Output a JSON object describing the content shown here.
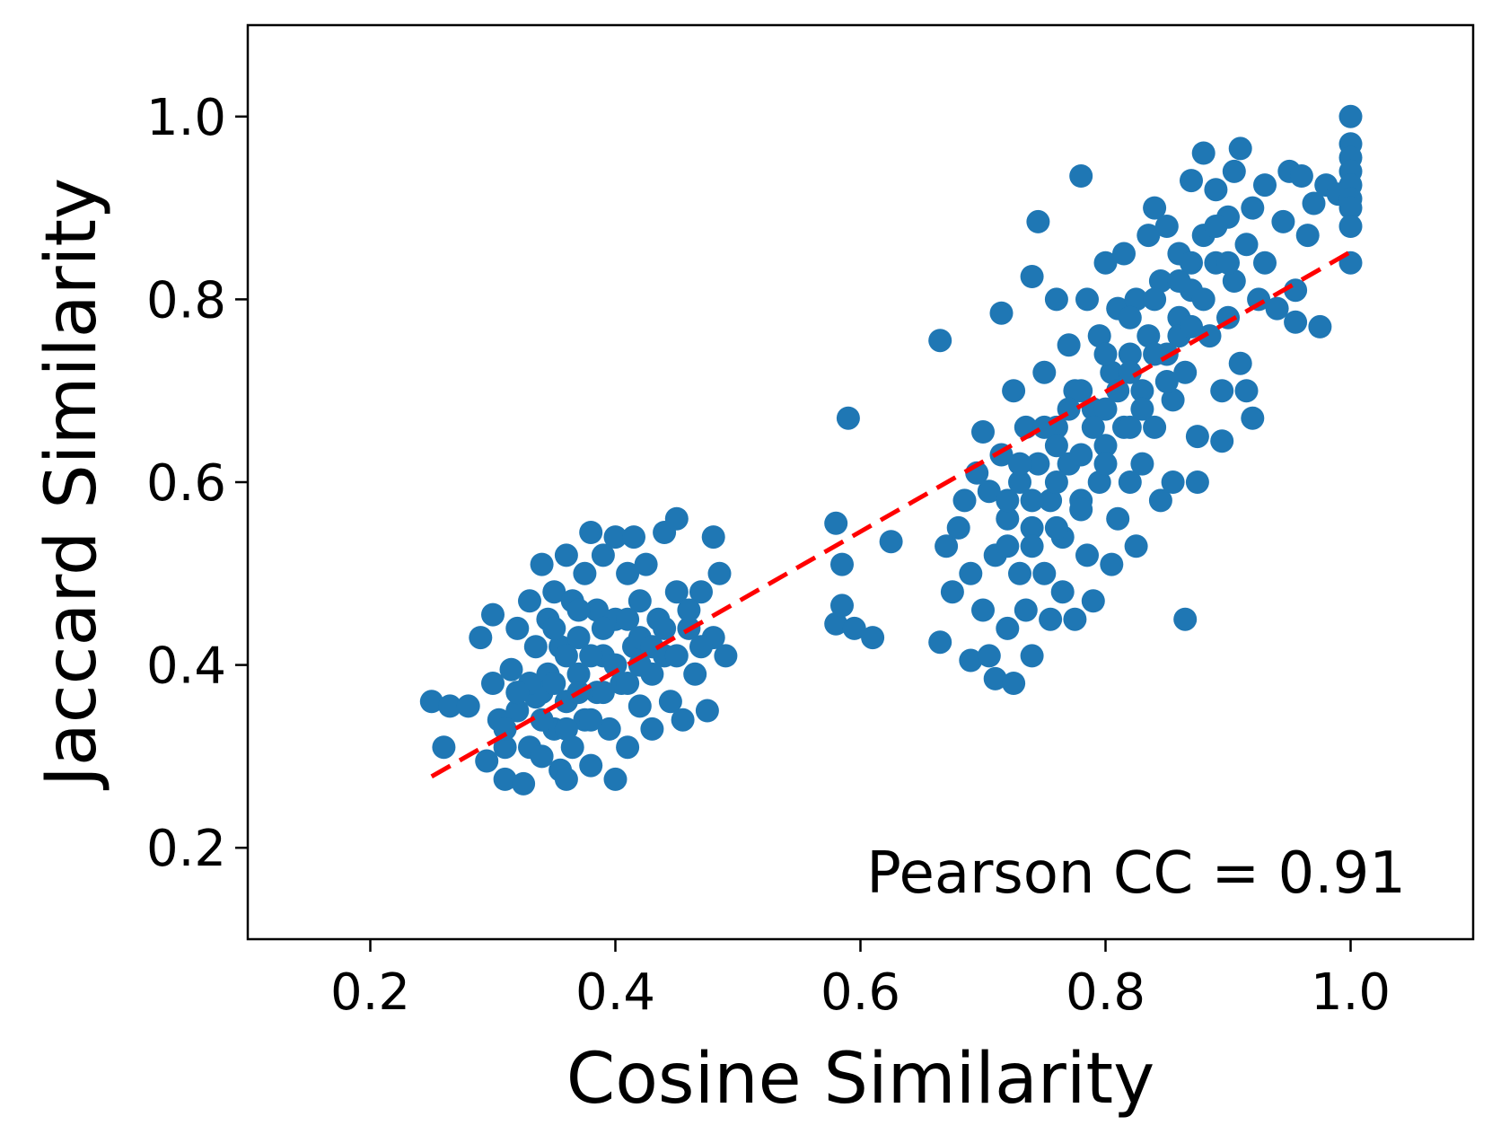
{
  "chart_data": {
    "type": "scatter",
    "title": "",
    "xlabel": "Cosine Similarity",
    "ylabel": "Jaccard Similarity",
    "xlim": [
      0.1,
      1.1
    ],
    "ylim": [
      0.1,
      1.1
    ],
    "xticks": [
      0.2,
      0.4,
      0.6,
      0.8,
      1.0
    ],
    "xtick_labels": [
      "0.2",
      "0.4",
      "0.6",
      "0.8",
      "1.0"
    ],
    "yticks": [
      0.2,
      0.4,
      0.6,
      0.8,
      1.0
    ],
    "ytick_labels": [
      "0.2",
      "0.4",
      "0.6",
      "0.8",
      "1.0"
    ],
    "grid": false,
    "annotation": "Pearson CC = 0.91",
    "colors": {
      "points": "#1f77b4",
      "fit_line": "#ff0000",
      "axes": "#000000"
    },
    "fit_line": {
      "style": "dashed",
      "x": [
        0.25,
        1.0
      ],
      "y": [
        0.278,
        0.852
      ]
    },
    "series": [
      {
        "name": "scatter-points",
        "points": [
          [
            0.25,
            0.36
          ],
          [
            0.26,
            0.31
          ],
          [
            0.265,
            0.355
          ],
          [
            0.28,
            0.355
          ],
          [
            0.29,
            0.43
          ],
          [
            0.295,
            0.295
          ],
          [
            0.3,
            0.455
          ],
          [
            0.3,
            0.38
          ],
          [
            0.305,
            0.34
          ],
          [
            0.31,
            0.31
          ],
          [
            0.31,
            0.275
          ],
          [
            0.315,
            0.395
          ],
          [
            0.32,
            0.44
          ],
          [
            0.32,
            0.35
          ],
          [
            0.325,
            0.27
          ],
          [
            0.33,
            0.47
          ],
          [
            0.33,
            0.31
          ],
          [
            0.335,
            0.42
          ],
          [
            0.335,
            0.365
          ],
          [
            0.34,
            0.51
          ],
          [
            0.34,
            0.3
          ],
          [
            0.345,
            0.45
          ],
          [
            0.345,
            0.39
          ],
          [
            0.35,
            0.48
          ],
          [
            0.35,
            0.33
          ],
          [
            0.355,
            0.285
          ],
          [
            0.355,
            0.42
          ],
          [
            0.36,
            0.52
          ],
          [
            0.36,
            0.36
          ],
          [
            0.36,
            0.275
          ],
          [
            0.365,
            0.47
          ],
          [
            0.365,
            0.31
          ],
          [
            0.37,
            0.43
          ],
          [
            0.37,
            0.39
          ],
          [
            0.375,
            0.5
          ],
          [
            0.375,
            0.34
          ],
          [
            0.38,
            0.545
          ],
          [
            0.38,
            0.29
          ],
          [
            0.385,
            0.46
          ],
          [
            0.385,
            0.37
          ],
          [
            0.39,
            0.52
          ],
          [
            0.39,
            0.41
          ],
          [
            0.395,
            0.33
          ],
          [
            0.4,
            0.54
          ],
          [
            0.4,
            0.275
          ],
          [
            0.4,
            0.45
          ],
          [
            0.405,
            0.38
          ],
          [
            0.41,
            0.5
          ],
          [
            0.41,
            0.31
          ],
          [
            0.415,
            0.54
          ],
          [
            0.415,
            0.42
          ],
          [
            0.42,
            0.355
          ],
          [
            0.42,
            0.47
          ],
          [
            0.425,
            0.51
          ],
          [
            0.43,
            0.39
          ],
          [
            0.43,
            0.33
          ],
          [
            0.435,
            0.45
          ],
          [
            0.44,
            0.545
          ],
          [
            0.44,
            0.41
          ],
          [
            0.445,
            0.36
          ],
          [
            0.45,
            0.56
          ],
          [
            0.45,
            0.48
          ],
          [
            0.455,
            0.34
          ],
          [
            0.46,
            0.44
          ],
          [
            0.465,
            0.39
          ],
          [
            0.47,
            0.48
          ],
          [
            0.475,
            0.35
          ],
          [
            0.48,
            0.54
          ],
          [
            0.48,
            0.43
          ],
          [
            0.485,
            0.5
          ],
          [
            0.49,
            0.41
          ],
          [
            0.35,
            0.44
          ],
          [
            0.37,
            0.46
          ],
          [
            0.39,
            0.44
          ],
          [
            0.41,
            0.45
          ],
          [
            0.38,
            0.41
          ],
          [
            0.4,
            0.4
          ],
          [
            0.42,
            0.43
          ],
          [
            0.36,
            0.41
          ],
          [
            0.34,
            0.37
          ],
          [
            0.33,
            0.38
          ],
          [
            0.32,
            0.37
          ],
          [
            0.31,
            0.33
          ],
          [
            0.35,
            0.38
          ],
          [
            0.37,
            0.37
          ],
          [
            0.39,
            0.37
          ],
          [
            0.41,
            0.38
          ],
          [
            0.43,
            0.42
          ],
          [
            0.44,
            0.44
          ],
          [
            0.38,
            0.34
          ],
          [
            0.36,
            0.33
          ],
          [
            0.34,
            0.34
          ],
          [
            0.42,
            0.4
          ],
          [
            0.45,
            0.41
          ],
          [
            0.46,
            0.46
          ],
          [
            0.47,
            0.42
          ],
          [
            0.58,
            0.555
          ],
          [
            0.585,
            0.51
          ],
          [
            0.59,
            0.67
          ],
          [
            0.58,
            0.445
          ],
          [
            0.585,
            0.465
          ],
          [
            0.595,
            0.44
          ],
          [
            0.61,
            0.43
          ],
          [
            0.625,
            0.535
          ],
          [
            0.665,
            0.755
          ],
          [
            0.665,
            0.425
          ],
          [
            0.67,
            0.53
          ],
          [
            0.675,
            0.48
          ],
          [
            0.68,
            0.55
          ],
          [
            0.685,
            0.58
          ],
          [
            0.69,
            0.5
          ],
          [
            0.69,
            0.405
          ],
          [
            0.695,
            0.61
          ],
          [
            0.7,
            0.46
          ],
          [
            0.7,
            0.655
          ],
          [
            0.705,
            0.59
          ],
          [
            0.705,
            0.41
          ],
          [
            0.71,
            0.52
          ],
          [
            0.71,
            0.385
          ],
          [
            0.715,
            0.63
          ],
          [
            0.715,
            0.785
          ],
          [
            0.72,
            0.56
          ],
          [
            0.72,
            0.44
          ],
          [
            0.725,
            0.7
          ],
          [
            0.725,
            0.38
          ],
          [
            0.73,
            0.6
          ],
          [
            0.73,
            0.5
          ],
          [
            0.735,
            0.66
          ],
          [
            0.735,
            0.46
          ],
          [
            0.74,
            0.825
          ],
          [
            0.74,
            0.55
          ],
          [
            0.74,
            0.41
          ],
          [
            0.745,
            0.62
          ],
          [
            0.745,
            0.885
          ],
          [
            0.75,
            0.72
          ],
          [
            0.75,
            0.5
          ],
          [
            0.755,
            0.58
          ],
          [
            0.755,
            0.45
          ],
          [
            0.76,
            0.8
          ],
          [
            0.76,
            0.66
          ],
          [
            0.765,
            0.54
          ],
          [
            0.765,
            0.48
          ],
          [
            0.77,
            0.75
          ],
          [
            0.77,
            0.62
          ],
          [
            0.775,
            0.7
          ],
          [
            0.775,
            0.45
          ],
          [
            0.78,
            0.935
          ],
          [
            0.78,
            0.58
          ],
          [
            0.785,
            0.8
          ],
          [
            0.785,
            0.52
          ],
          [
            0.79,
            0.68
          ],
          [
            0.79,
            0.47
          ],
          [
            0.795,
            0.76
          ],
          [
            0.795,
            0.6
          ],
          [
            0.8,
            0.84
          ],
          [
            0.8,
            0.64
          ],
          [
            0.805,
            0.51
          ],
          [
            0.805,
            0.72
          ],
          [
            0.81,
            0.79
          ],
          [
            0.81,
            0.56
          ],
          [
            0.815,
            0.85
          ],
          [
            0.815,
            0.66
          ],
          [
            0.82,
            0.74
          ],
          [
            0.82,
            0.6
          ],
          [
            0.825,
            0.53
          ],
          [
            0.825,
            0.8
          ],
          [
            0.83,
            0.7
          ],
          [
            0.83,
            0.62
          ],
          [
            0.835,
            0.87
          ],
          [
            0.835,
            0.76
          ],
          [
            0.84,
            0.9
          ],
          [
            0.84,
            0.66
          ],
          [
            0.845,
            0.82
          ],
          [
            0.845,
            0.58
          ],
          [
            0.85,
            0.74
          ],
          [
            0.85,
            0.88
          ],
          [
            0.855,
            0.69
          ],
          [
            0.855,
            0.6
          ],
          [
            0.86,
            0.85
          ],
          [
            0.86,
            0.78
          ],
          [
            0.865,
            0.72
          ],
          [
            0.865,
            0.45
          ],
          [
            0.87,
            0.93
          ],
          [
            0.87,
            0.81
          ],
          [
            0.875,
            0.65
          ],
          [
            0.875,
            0.6
          ],
          [
            0.88,
            0.96
          ],
          [
            0.88,
            0.87
          ],
          [
            0.885,
            0.76
          ],
          [
            0.89,
            0.84
          ],
          [
            0.89,
            0.92
          ],
          [
            0.895,
            0.7
          ],
          [
            0.895,
            0.645
          ],
          [
            0.9,
            0.89
          ],
          [
            0.9,
            0.78
          ],
          [
            0.905,
            0.94
          ],
          [
            0.905,
            0.82
          ],
          [
            0.91,
            0.965
          ],
          [
            0.91,
            0.73
          ],
          [
            0.915,
            0.86
          ],
          [
            0.915,
            0.7
          ],
          [
            0.92,
            0.9
          ],
          [
            0.92,
            0.67
          ],
          [
            0.925,
            0.8
          ],
          [
            0.93,
            0.925
          ],
          [
            0.93,
            0.84
          ],
          [
            0.94,
            0.79
          ],
          [
            0.945,
            0.885
          ],
          [
            0.95,
            0.94
          ],
          [
            0.955,
            0.81
          ],
          [
            0.955,
            0.775
          ],
          [
            0.96,
            0.935
          ],
          [
            0.965,
            0.87
          ],
          [
            0.97,
            0.905
          ],
          [
            0.975,
            0.77
          ],
          [
            0.98,
            0.925
          ],
          [
            0.99,
            0.915
          ],
          [
            1.0,
            1.0
          ],
          [
            1.0,
            0.97
          ],
          [
            1.0,
            0.955
          ],
          [
            1.0,
            0.94
          ],
          [
            1.0,
            0.925
          ],
          [
            1.0,
            0.91
          ],
          [
            1.0,
            0.9
          ],
          [
            1.0,
            0.88
          ],
          [
            1.0,
            0.84
          ],
          [
            0.76,
            0.64
          ],
          [
            0.78,
            0.7
          ],
          [
            0.8,
            0.68
          ],
          [
            0.82,
            0.66
          ],
          [
            0.78,
            0.63
          ],
          [
            0.76,
            0.6
          ],
          [
            0.74,
            0.58
          ],
          [
            0.72,
            0.58
          ],
          [
            0.8,
            0.74
          ],
          [
            0.82,
            0.78
          ],
          [
            0.84,
            0.74
          ],
          [
            0.86,
            0.76
          ],
          [
            0.88,
            0.8
          ],
          [
            0.9,
            0.84
          ],
          [
            0.86,
            0.82
          ],
          [
            0.84,
            0.8
          ],
          [
            0.82,
            0.72
          ],
          [
            0.8,
            0.62
          ],
          [
            0.78,
            0.57
          ],
          [
            0.76,
            0.55
          ],
          [
            0.74,
            0.53
          ],
          [
            0.72,
            0.53
          ],
          [
            0.83,
            0.68
          ],
          [
            0.81,
            0.7
          ],
          [
            0.79,
            0.66
          ],
          [
            0.77,
            0.68
          ],
          [
            0.75,
            0.66
          ],
          [
            0.73,
            0.62
          ],
          [
            0.87,
            0.84
          ],
          [
            0.89,
            0.88
          ],
          [
            0.85,
            0.71
          ],
          [
            0.87,
            0.77
          ]
        ]
      }
    ]
  }
}
